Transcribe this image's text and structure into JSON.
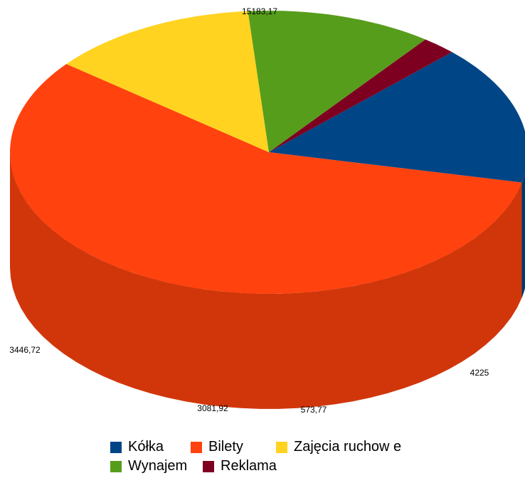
{
  "chart_data": {
    "type": "pie",
    "style": "3d",
    "categories": [
      "Kółka",
      "Bilety",
      "Zajęcia ruchow e",
      "Wynajem",
      "Reklama"
    ],
    "values": [
      4225,
      15183.17,
      3446.72,
      3081.92,
      573.77
    ],
    "value_labels": [
      "4225",
      "15183,17",
      "3446,72",
      "3081,92",
      "573,77"
    ],
    "colors": [
      "#004586",
      "#ff420e",
      "#ffd320",
      "#579d1c",
      "#7e0021"
    ],
    "legend_position": "bottom"
  }
}
